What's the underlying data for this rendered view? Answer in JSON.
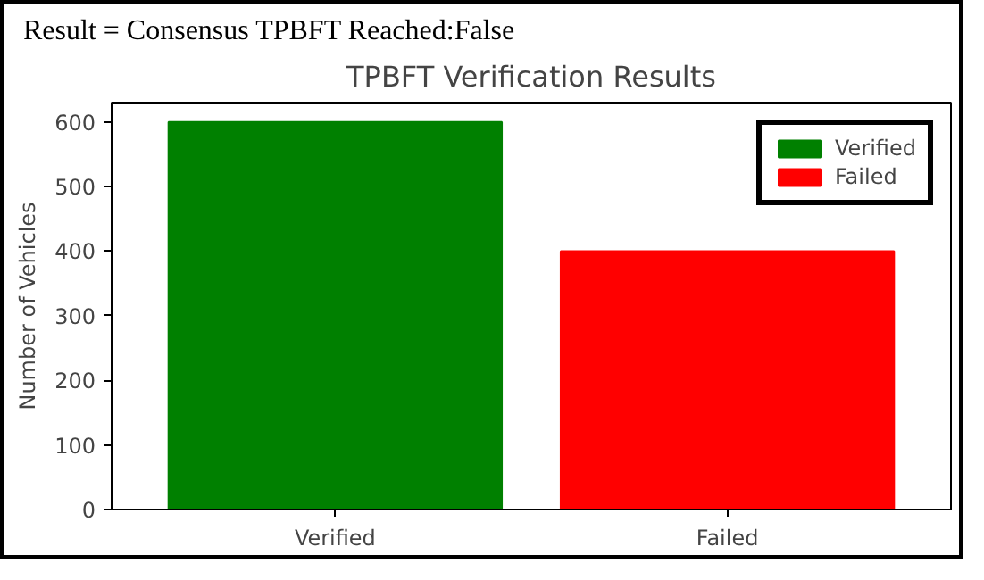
{
  "chart_data": {
    "type": "bar",
    "title": "TPBFT Verification Results",
    "ylabel": "Number of Vehicles",
    "categories": [
      "Verified",
      "Failed"
    ],
    "series": [
      {
        "name": "Verified",
        "color": "#008000",
        "values": [
          600,
          null
        ]
      },
      {
        "name": "Failed",
        "color": "#ff0000",
        "values": [
          null,
          400
        ]
      }
    ],
    "ylim": [
      0,
      630
    ],
    "yticks": [
      0,
      100,
      200,
      300,
      400,
      500,
      600
    ],
    "grid": false,
    "legend": "top right",
    "annotations": [
      "Result = Consensus TPBFT Reached:False"
    ]
  }
}
